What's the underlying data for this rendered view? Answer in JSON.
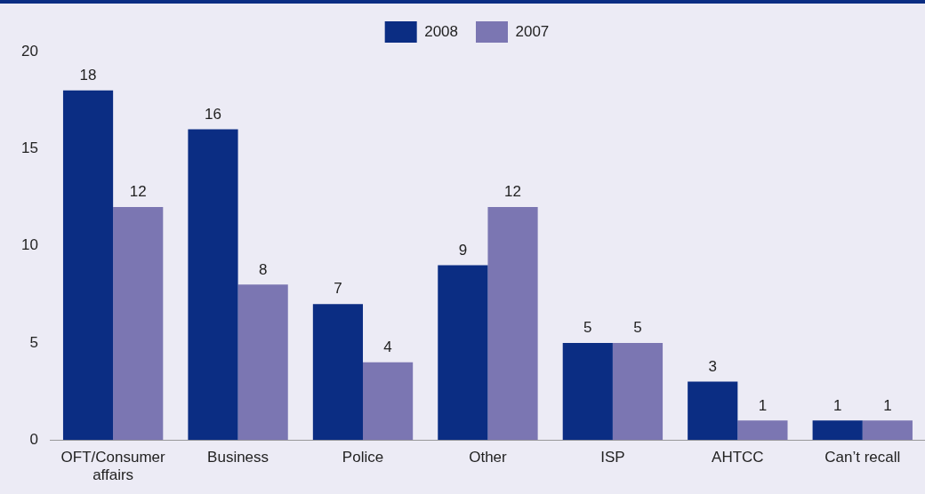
{
  "chart_data": {
    "type": "bar",
    "categories": [
      "OFT/Consumer affairs",
      "Business",
      "Police",
      "Other",
      "ISP",
      "AHTCC",
      "Can’t recall"
    ],
    "series": [
      {
        "name": "2008",
        "color": "#0b2d83",
        "values": [
          18,
          16,
          7,
          9,
          5,
          3,
          1
        ]
      },
      {
        "name": "2007",
        "color": "#7b76b2",
        "values": [
          12,
          8,
          4,
          12,
          5,
          1,
          1
        ]
      }
    ],
    "ylim": [
      0,
      20
    ],
    "yticks": [
      0,
      5,
      10,
      15,
      20
    ],
    "grid": false,
    "legend": "top",
    "data_labels": true
  }
}
